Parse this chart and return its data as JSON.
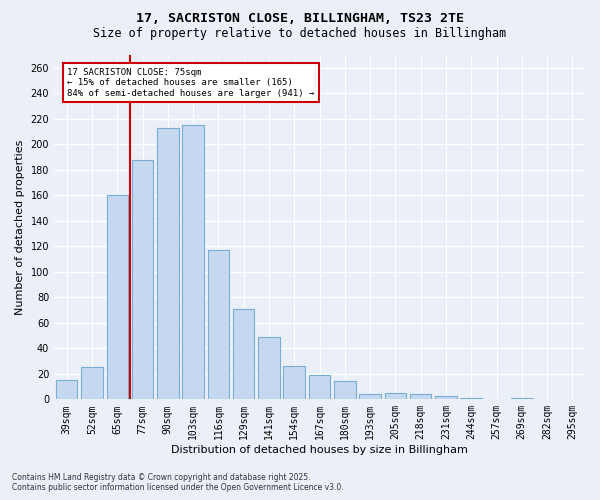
{
  "title_line1": "17, SACRISTON CLOSE, BILLINGHAM, TS23 2TE",
  "title_line2": "Size of property relative to detached houses in Billingham",
  "xlabel": "Distribution of detached houses by size in Billingham",
  "ylabel": "Number of detached properties",
  "categories": [
    "39sqm",
    "52sqm",
    "65sqm",
    "77sqm",
    "90sqm",
    "103sqm",
    "116sqm",
    "129sqm",
    "141sqm",
    "154sqm",
    "167sqm",
    "180sqm",
    "193sqm",
    "205sqm",
    "218sqm",
    "231sqm",
    "244sqm",
    "257sqm",
    "269sqm",
    "282sqm",
    "295sqm"
  ],
  "values": [
    15,
    25,
    160,
    188,
    213,
    215,
    117,
    71,
    49,
    26,
    19,
    14,
    4,
    5,
    4,
    3,
    1,
    0,
    1,
    0,
    0
  ],
  "bar_color": "#c5d8f0",
  "bar_edge_color": "#7aadd4",
  "vline_color": "#cc0000",
  "vline_x": 2.5,
  "annotation_title": "17 SACRISTON CLOSE: 75sqm",
  "annotation_line2": "← 15% of detached houses are smaller (165)",
  "annotation_line3": "84% of semi-detached houses are larger (941) →",
  "annotation_box_edgecolor": "#cc0000",
  "ylim": [
    0,
    270
  ],
  "yticks": [
    0,
    20,
    40,
    60,
    80,
    100,
    120,
    140,
    160,
    180,
    200,
    220,
    240,
    260
  ],
  "background_color": "#eaeff8",
  "grid_color": "#ffffff",
  "footer_line1": "Contains HM Land Registry data © Crown copyright and database right 2025.",
  "footer_line2": "Contains public sector information licensed under the Open Government Licence v3.0."
}
